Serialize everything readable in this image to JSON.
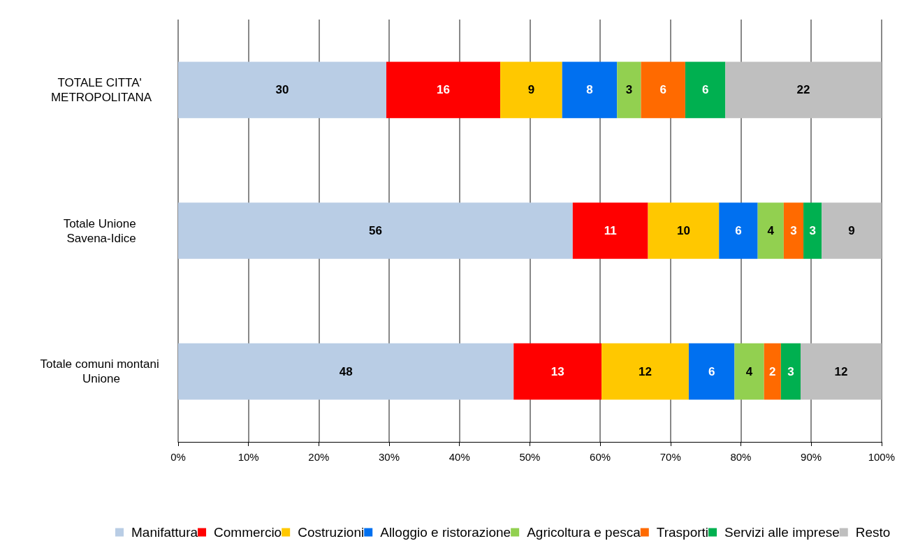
{
  "chart_data": {
    "type": "bar",
    "orientation": "horizontal",
    "stacked": true,
    "categories": [
      "TOTALE CITTA' METROPOLITANA",
      "Totale Unione Savena-Idice",
      "Totale comuni montani Unione"
    ],
    "series": [
      {
        "name": "Manifattura",
        "color": "#b9cde5",
        "values": [
          29.6,
          56.1,
          47.7
        ],
        "value_labels": [
          "30",
          "56",
          "48"
        ]
      },
      {
        "name": "Commercio",
        "color": "#ff0000",
        "values": [
          16.2,
          10.7,
          12.5
        ],
        "value_labels": [
          "16",
          "11",
          "13"
        ]
      },
      {
        "name": "Costruzioni",
        "color": "#ffc800",
        "values": [
          8.8,
          10.1,
          12.4
        ],
        "value_labels": [
          "9",
          "10",
          "12"
        ]
      },
      {
        "name": "Alloggio e ristorazione",
        "color": "#0070f0",
        "values": [
          7.8,
          5.5,
          6.5
        ],
        "value_labels": [
          "8",
          "6",
          "6"
        ]
      },
      {
        "name": "Agricoltura e pesca",
        "color": "#92d050",
        "values": [
          3.4,
          3.7,
          4.2
        ],
        "value_labels": [
          "3",
          "4",
          "4"
        ]
      },
      {
        "name": "Trasporti",
        "color": "#ff6a00",
        "values": [
          6.3,
          2.8,
          2.4
        ],
        "value_labels": [
          "6",
          "3",
          "2"
        ]
      },
      {
        "name": "Servizi alle imprese",
        "color": "#00b050",
        "values": [
          5.7,
          2.6,
          2.8
        ],
        "value_labels": [
          "6",
          "3",
          "3"
        ]
      },
      {
        "name": "Resto",
        "color": "#bfbfbf",
        "values": [
          22.2,
          8.5,
          11.5
        ],
        "value_labels": [
          "22",
          "9",
          "12"
        ]
      }
    ],
    "xlim": [
      0,
      100
    ],
    "xticks": [
      {
        "value": 0,
        "label": "0%"
      },
      {
        "value": 10,
        "label": "10%"
      },
      {
        "value": 20,
        "label": "20%"
      },
      {
        "value": 30,
        "label": "30%"
      },
      {
        "value": 40,
        "label": "40%"
      },
      {
        "value": 50,
        "label": "50%"
      },
      {
        "value": 60,
        "label": "60%"
      },
      {
        "value": 70,
        "label": "70%"
      },
      {
        "value": 80,
        "label": "80%"
      },
      {
        "value": 90,
        "label": "90%"
      },
      {
        "value": 100,
        "label": "100%"
      }
    ],
    "grid": "x",
    "legend": "bottom"
  }
}
